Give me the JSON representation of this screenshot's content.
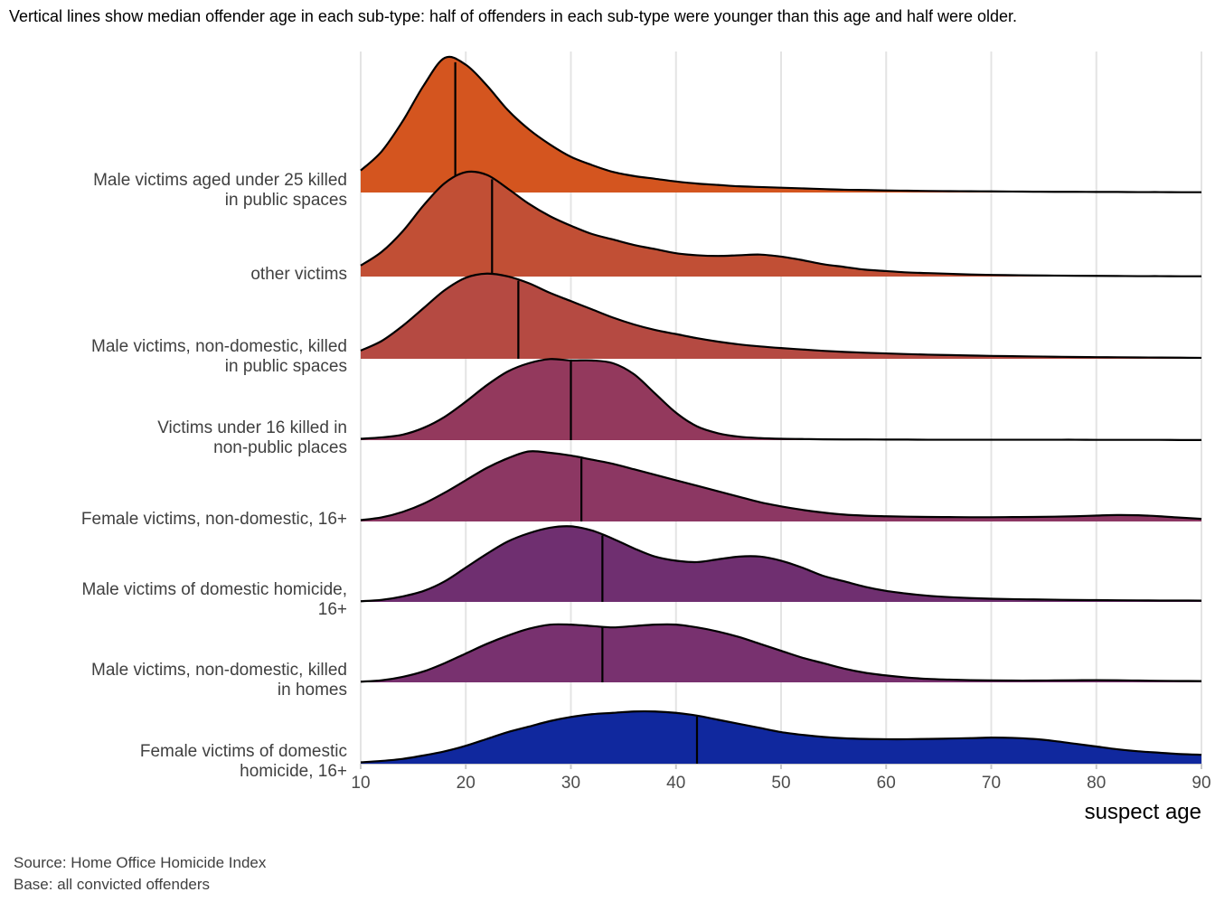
{
  "title": "Vertical lines show median offender age in each sub-type: half of offenders in each sub-type were younger than this age and half were older.",
  "caption": "Source: Home Office Homicide Index\nBase: all convicted offenders",
  "chart_data": {
    "type": "area",
    "variant": "ridgeline-density",
    "xlabel": "suspect age",
    "xlim": [
      10,
      90
    ],
    "x_ticks": [
      10,
      20,
      30,
      40,
      50,
      60,
      70,
      80,
      90
    ],
    "grid": "vertical-only",
    "legend_position": "none",
    "ages": [
      10,
      12,
      14,
      16,
      18,
      20,
      22,
      24,
      26,
      28,
      30,
      32,
      34,
      36,
      38,
      40,
      42,
      44,
      46,
      48,
      50,
      52,
      54,
      56,
      58,
      60,
      62,
      64,
      66,
      68,
      70,
      72,
      74,
      76,
      78,
      80,
      82,
      84,
      86,
      88,
      90
    ],
    "density_units": "relative density, 100 = tallest peak in figure",
    "series": [
      {
        "label": "Male victims aged under 25 killed in public spaces",
        "label_lines": [
          "Male victims aged under 25 killed",
          "in public spaces"
        ],
        "median_age": 19,
        "color": "#D4551F",
        "density": [
          16,
          30,
          52,
          78,
          98,
          93,
          78,
          60,
          46,
          35,
          26,
          20,
          15,
          12,
          10,
          8,
          6.5,
          5.5,
          4.5,
          4,
          3.5,
          3,
          2.5,
          2,
          1.8,
          1.5,
          1.3,
          1.1,
          1,
          0.9,
          0.8,
          0.7,
          0.6,
          0.5,
          0.5,
          0.4,
          0.4,
          0.3,
          0.3,
          0.2,
          0.2
        ]
      },
      {
        "label": "other victims",
        "label_lines": [
          "other victims"
        ],
        "median_age": 22.5,
        "color": "#C14F35",
        "density": [
          8,
          18,
          33,
          52,
          68,
          76,
          74,
          64,
          53,
          44,
          37,
          31,
          27,
          23,
          20,
          17,
          15.5,
          15,
          15.5,
          16,
          14.5,
          12,
          9,
          7,
          5,
          4,
          3,
          2.5,
          2,
          1.5,
          1.2,
          1,
          0.8,
          0.7,
          0.6,
          0.5,
          0.4,
          0.3,
          0.3,
          0.2,
          0.2
        ]
      },
      {
        "label": "Male victims, non-domestic, killed in public spaces",
        "label_lines": [
          "Male victims, non-domestic, killed",
          "in public spaces"
        ],
        "median_age": 25,
        "color": "#B54A42",
        "density": [
          6,
          13,
          24,
          37,
          50,
          59,
          62,
          60,
          55,
          48,
          42,
          36,
          30,
          25,
          21,
          18,
          15,
          12.5,
          10.5,
          9,
          7.8,
          6.8,
          5.8,
          5,
          4.4,
          3.9,
          3.4,
          3,
          2.7,
          2.4,
          2.1,
          1.9,
          1.7,
          1.5,
          1.3,
          1.2,
          1.1,
          1,
          0.9,
          0.8,
          0.7
        ]
      },
      {
        "label": "Victims under 16 killed in non-public places",
        "label_lines": [
          "Victims under 16 killed in",
          "non-public places"
        ],
        "median_age": 30,
        "color": "#93395D",
        "density": [
          1,
          2,
          4,
          9,
          17,
          28,
          40,
          50,
          56,
          59,
          58,
          58,
          56,
          48,
          34,
          20,
          10,
          5,
          2.5,
          1.5,
          1,
          0.8,
          0.6,
          0.5,
          0.5,
          0.4,
          0.4,
          0.3,
          0.3,
          0.3,
          0.3,
          0.3,
          0.3,
          0.3,
          0.3,
          0.2,
          0.2,
          0.2,
          0.2,
          0.1,
          0.1
        ]
      },
      {
        "label": "Female victims, non-domestic, 16+",
        "label_lines": [
          "Female victims, non-domestic, 16+"
        ],
        "median_age": 31,
        "color": "#8C3763",
        "density": [
          1,
          3,
          7,
          13,
          21,
          30,
          39,
          46,
          51,
          50,
          48,
          45,
          42,
          38,
          34,
          30,
          26,
          22,
          18,
          14,
          11,
          8.5,
          6.5,
          5,
          4.2,
          3.8,
          3.5,
          3.3,
          3.2,
          3.1,
          3.1,
          3.2,
          3.3,
          3.5,
          3.8,
          4.3,
          4.7,
          4.5,
          3.8,
          2.8,
          1.9
        ]
      },
      {
        "label": "Male victims of domestic homicide, 16+",
        "label_lines": [
          "Male victims of domestic homicide,",
          "16+"
        ],
        "median_age": 33,
        "color": "#6F2F70",
        "density": [
          0.5,
          1.5,
          4,
          8,
          15,
          25,
          35,
          44,
          50,
          54,
          55,
          52,
          46,
          39,
          33,
          30,
          29,
          31,
          33,
          33,
          30,
          25,
          19,
          15,
          11,
          8,
          6,
          4.5,
          3.5,
          2.8,
          2.3,
          2,
          1.8,
          1.6,
          1.4,
          1.3,
          1.2,
          1.1,
          1,
          1,
          0.9
        ]
      },
      {
        "label": "Male victims, non-domestic, killed in homes",
        "label_lines": [
          "Male victims, non-domestic, killed",
          "in homes"
        ],
        "median_age": 33,
        "color": "#78316F",
        "density": [
          0.5,
          1.5,
          4,
          8,
          14,
          21,
          28,
          34,
          39,
          42,
          42,
          41,
          40,
          41,
          42,
          42,
          40,
          37,
          33,
          28,
          23,
          18,
          14,
          10,
          7,
          5,
          3.5,
          2.5,
          2,
          1.6,
          1.4,
          1.3,
          1.3,
          1.4,
          1.5,
          1.6,
          1.5,
          1.3,
          1.1,
          1,
          0.9
        ]
      },
      {
        "label": "Female victims of domestic homicide, 16+",
        "label_lines": [
          "Female victims of domestic",
          "homicide, 16+"
        ],
        "median_age": 42,
        "color": "#10289E",
        "density": [
          1,
          2,
          3.5,
          6,
          9,
          13,
          18,
          23,
          27,
          31,
          34,
          36,
          37,
          38,
          38,
          37,
          35,
          32,
          29,
          26,
          23,
          21,
          19.5,
          18.5,
          18,
          17.8,
          17.8,
          18,
          18.3,
          18.6,
          19,
          18.8,
          18,
          16.5,
          14.5,
          12.5,
          10.5,
          9,
          8,
          7,
          6.5
        ]
      }
    ],
    "colors": {
      "outline": "#000000",
      "gridline": "#E4E4E4",
      "axis_line": "#C8C8C8",
      "tick_mark": "#C8C8C8",
      "row_label_text": "#404040",
      "tick_label_text": "#4D4D4D"
    }
  }
}
